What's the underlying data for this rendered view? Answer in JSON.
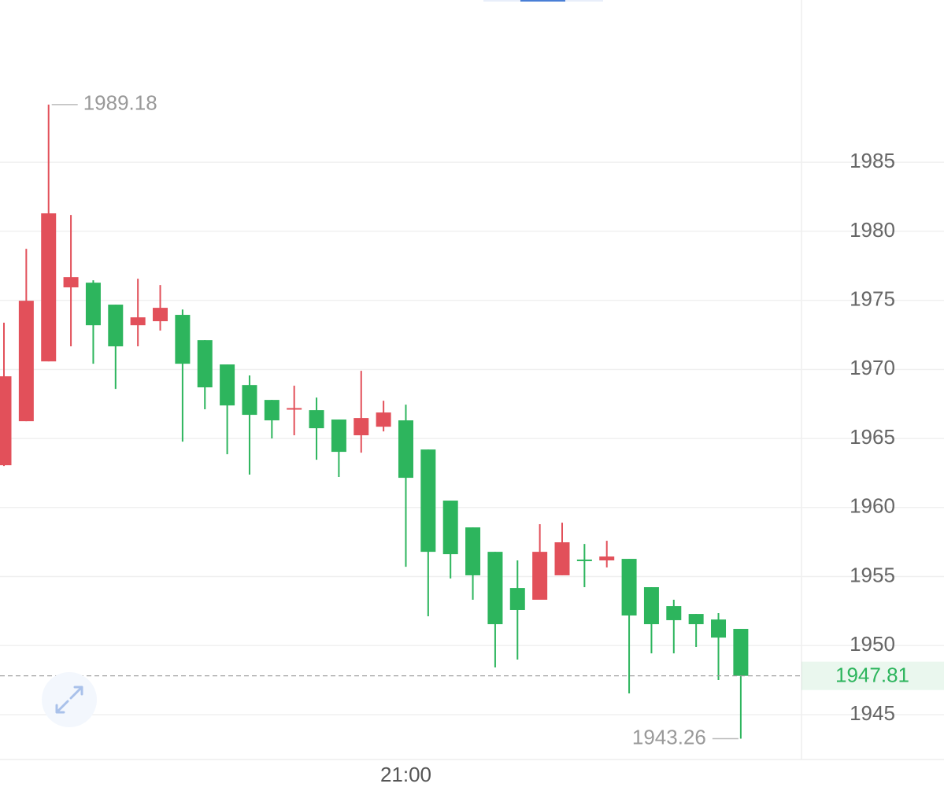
{
  "chart_data": {
    "type": "candlestick",
    "categories": [
      null,
      null,
      null,
      null,
      null,
      null,
      null,
      null,
      null,
      null,
      null,
      null,
      null,
      null,
      null,
      null,
      null,
      null,
      "21:00",
      null,
      null,
      null,
      null,
      null,
      null,
      null,
      null,
      null,
      null,
      null,
      null,
      null,
      null,
      null
    ],
    "open": [
      1963.06,
      1966.25,
      1970.58,
      1975.94,
      1976.28,
      1974.69,
      1973.2,
      1973.49,
      1973.95,
      1972.12,
      1970.36,
      1968.87,
      1967.79,
      1967.11,
      1967.05,
      1966.37,
      1965.23,
      1965.85,
      1966.31,
      1964.2,
      1960.5,
      1958.56,
      1956.79,
      1954.17,
      1953.32,
      1955.09,
      1956.23,
      1956.17,
      1956.28,
      1954.23,
      1952.86,
      1952.29,
      1951.89,
      1951.21
    ],
    "high": [
      1973.38,
      1978.73,
      1989.18,
      1981.18,
      1976.45,
      1974.69,
      1976.57,
      1976.11,
      1974.34,
      1972.12,
      1970.36,
      1969.56,
      1967.79,
      1968.82,
      1967.96,
      1966.37,
      1969.9,
      1967.73,
      1967.45,
      1964.2,
      1960.5,
      1958.56,
      1956.79,
      1956.17,
      1958.79,
      1958.9,
      1957.36,
      1957.59,
      1956.28,
      1954.23,
      1953.32,
      1952.29,
      1952.35,
      1951.21
    ],
    "low": [
      1963.0,
      1966.25,
      1970.58,
      1971.67,
      1970.41,
      1968.59,
      1971.67,
      1972.81,
      1964.77,
      1967.11,
      1963.86,
      1962.38,
      1965.0,
      1965.23,
      1963.46,
      1962.21,
      1963.97,
      1965.51,
      1955.71,
      1952.12,
      1954.86,
      1953.32,
      1948.42,
      1948.99,
      1953.32,
      1955.09,
      1954.23,
      1955.66,
      1946.54,
      1949.44,
      1949.44,
      1949.9,
      1947.51,
      1943.26
    ],
    "close": [
      1969.5,
      1974.97,
      1981.3,
      1976.68,
      1973.2,
      1971.67,
      1973.77,
      1974.46,
      1970.41,
      1968.7,
      1967.39,
      1966.71,
      1966.31,
      1967.2,
      1965.74,
      1964.03,
      1966.48,
      1966.88,
      1962.15,
      1956.79,
      1956.62,
      1955.09,
      1951.55,
      1952.58,
      1956.79,
      1957.48,
      1956.17,
      1956.45,
      1952.18,
      1951.55,
      1951.84,
      1951.55,
      1950.58,
      1947.81
    ],
    "up_color": "#e2505a",
    "down_color": "#2db55d",
    "ylim": [
      1941.75,
      1996.75
    ],
    "yticks": [
      1945,
      1950,
      1955,
      1960,
      1965,
      1970,
      1975,
      1980,
      1985
    ],
    "grid": true
  }
}
